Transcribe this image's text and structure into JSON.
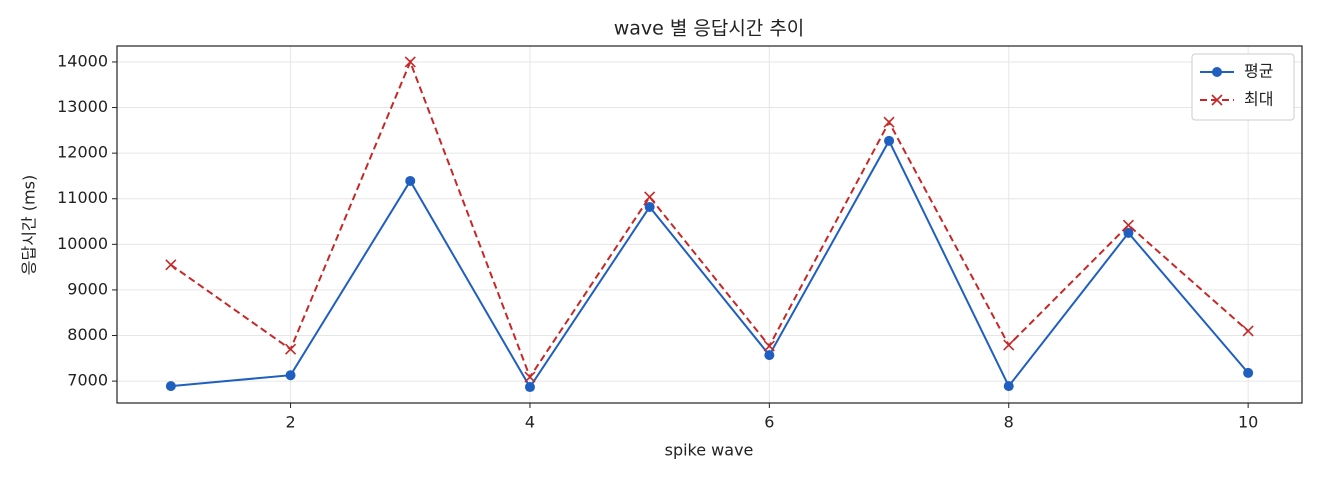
{
  "chart_data": {
    "type": "line",
    "title": "wave 별 응답시간 추이",
    "x_label": "spike wave",
    "y_label": "응답시간 (ms)",
    "x": [
      1,
      2,
      3,
      4,
      5,
      6,
      7,
      8,
      9,
      10
    ],
    "series": [
      {
        "name": "평균",
        "color": "#1f5fbf",
        "marker": "o",
        "linestyle": "solid",
        "values": [
          6890,
          7130,
          11390,
          6870,
          10820,
          7570,
          12270,
          6890,
          10250,
          7180
        ]
      },
      {
        "name": "최대",
        "color": "#c62828",
        "marker": "x",
        "linestyle": "dashed",
        "values": [
          9550,
          7700,
          14000,
          7090,
          11040,
          7770,
          12680,
          7790,
          10420,
          8100
        ]
      }
    ],
    "xlim": [
      0.55,
      10.45
    ],
    "xticks": [
      2,
      4,
      6,
      8,
      10
    ],
    "ylim": [
      6520,
      14350
    ],
    "yticks": [
      7000,
      8000,
      9000,
      10000,
      11000,
      12000,
      13000,
      14000
    ],
    "grid": true,
    "legend": "upper right"
  }
}
